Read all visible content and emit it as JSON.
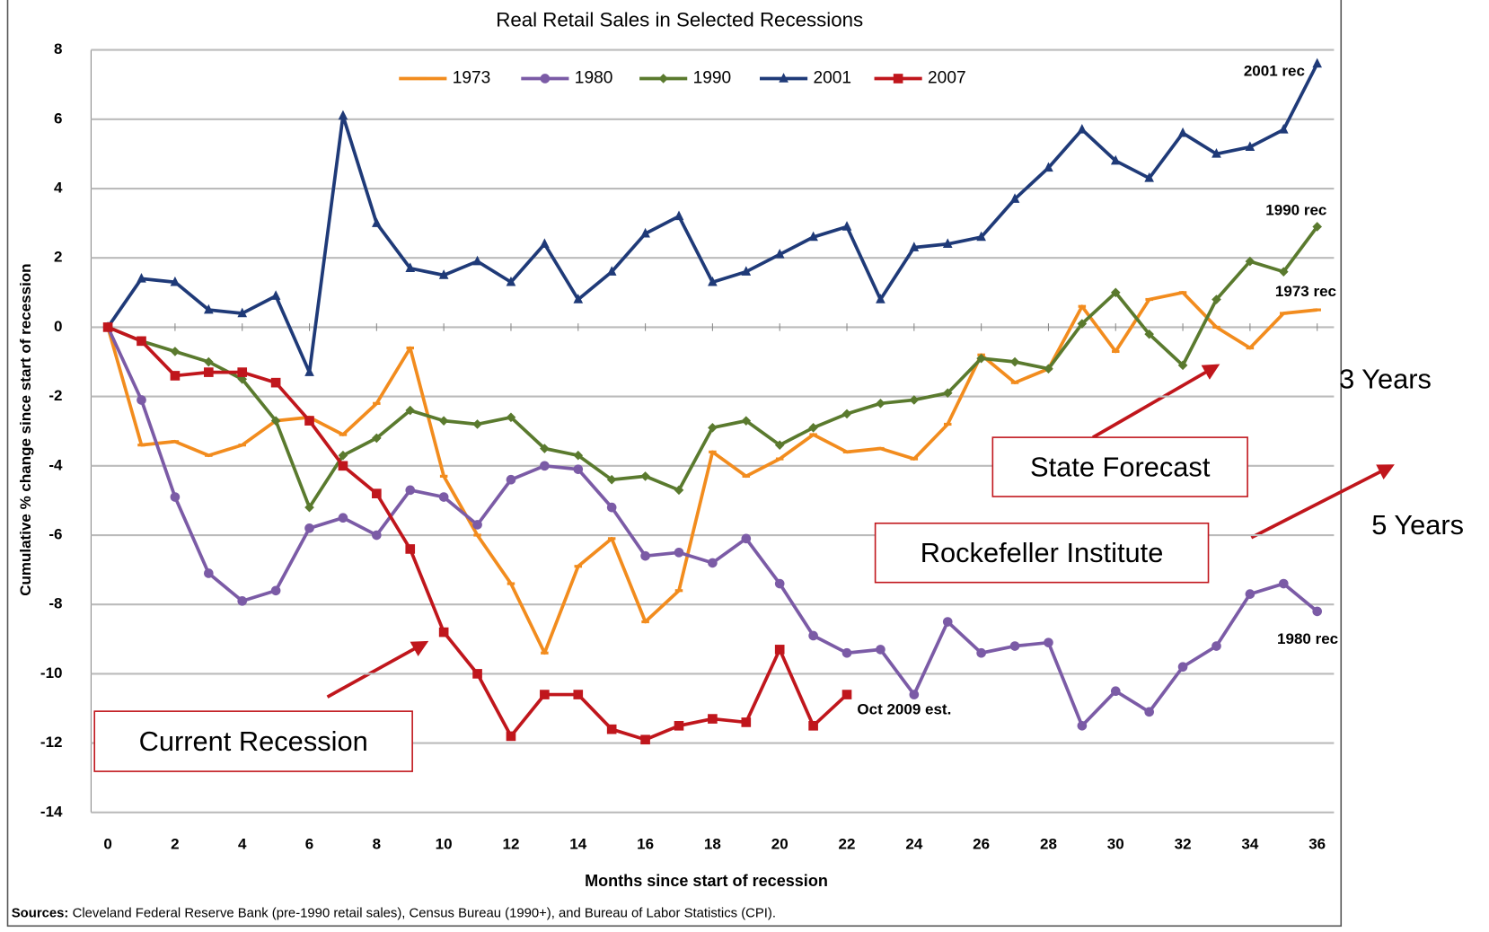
{
  "chart_data": {
    "type": "line",
    "title": "Real Retail Sales in Selected Recessions",
    "xlabel": "Months since start of recession",
    "ylabel": "Cumulative % change since start of recession",
    "x": [
      0,
      1,
      2,
      3,
      4,
      5,
      6,
      7,
      8,
      9,
      10,
      11,
      12,
      13,
      14,
      15,
      16,
      17,
      18,
      19,
      20,
      21,
      22,
      23,
      24,
      25,
      26,
      27,
      28,
      29,
      30,
      31,
      32,
      33,
      34,
      35,
      36
    ],
    "xlim": [
      -0.5,
      36.5
    ],
    "xticks": [
      0,
      2,
      4,
      6,
      8,
      10,
      12,
      14,
      16,
      18,
      20,
      22,
      24,
      26,
      28,
      30,
      32,
      34,
      36
    ],
    "ylim": [
      -14,
      8
    ],
    "yticks": [
      -14,
      -12,
      -10,
      -8,
      -6,
      -4,
      -2,
      0,
      2,
      4,
      6,
      8
    ],
    "grid": true,
    "legend": "top",
    "series": [
      {
        "name": "1973",
        "color": "#f28c1e",
        "marker": "dash",
        "values": [
          0,
          -3.4,
          -3.3,
          -3.7,
          -3.4,
          -2.7,
          -2.6,
          -3.1,
          -2.2,
          -0.6,
          -4.3,
          -6.0,
          -7.4,
          -9.4,
          -6.9,
          -6.1,
          -8.5,
          -7.6,
          -3.6,
          -4.3,
          -3.8,
          -3.1,
          -3.6,
          -3.5,
          -3.8,
          -2.8,
          -0.8,
          -1.6,
          -1.2,
          0.6,
          -0.7,
          0.8,
          1.0,
          0.0,
          -0.6,
          0.4,
          0.5
        ]
      },
      {
        "name": "1980",
        "color": "#7b5ba6",
        "marker": "circle",
        "values": [
          0,
          -2.1,
          -4.9,
          -7.1,
          -7.9,
          -7.6,
          -5.8,
          -5.5,
          -6.0,
          -4.7,
          -4.9,
          -5.7,
          -4.4,
          -4.0,
          -4.1,
          -5.2,
          -6.6,
          -6.5,
          -6.8,
          -6.1,
          -7.4,
          -8.9,
          -9.4,
          -9.3,
          -10.6,
          -8.5,
          -9.4,
          -9.2,
          -9.1,
          -11.5,
          -10.5,
          -11.1,
          -9.8,
          -9.2,
          -7.7,
          -7.4,
          -8.2
        ]
      },
      {
        "name": "1990",
        "color": "#5a7a2e",
        "marker": "diamond",
        "values": [
          0,
          -0.4,
          -0.7,
          -1.0,
          -1.5,
          -2.7,
          -5.2,
          -3.7,
          -3.2,
          -2.4,
          -2.7,
          -2.8,
          -2.6,
          -3.5,
          -3.7,
          -4.4,
          -4.3,
          -4.7,
          -2.9,
          -2.7,
          -3.4,
          -2.9,
          -2.5,
          -2.2,
          -2.1,
          -1.9,
          -0.9,
          -1.0,
          -1.2,
          0.1,
          1.0,
          -0.2,
          -1.1,
          0.8,
          1.9,
          1.6,
          2.9
        ]
      },
      {
        "name": "2001",
        "color": "#1f3a78",
        "marker": "triangle",
        "values": [
          0,
          1.4,
          1.3,
          0.5,
          0.4,
          0.9,
          -1.3,
          6.1,
          3.0,
          1.7,
          1.5,
          1.9,
          1.3,
          2.4,
          0.8,
          1.6,
          2.7,
          3.2,
          1.3,
          1.6,
          2.1,
          2.6,
          2.9,
          0.8,
          2.3,
          2.4,
          2.6,
          3.7,
          4.6,
          5.7,
          4.8,
          4.3,
          5.6,
          5.0,
          5.2,
          5.7,
          7.6
        ]
      },
      {
        "name": "2007",
        "color": "#c0161c",
        "marker": "square",
        "values": [
          0,
          -0.4,
          -1.4,
          -1.3,
          -1.3,
          -1.6,
          -2.7,
          -4.0,
          -4.8,
          -6.4,
          -8.8,
          -10.0,
          -11.8,
          -10.6,
          -10.6,
          -11.6,
          -11.9,
          -11.5,
          -11.3,
          -11.4,
          -9.3,
          -11.5,
          -10.6,
          null,
          null,
          null,
          null,
          null,
          null,
          null,
          null,
          null,
          null,
          null,
          null,
          null,
          null
        ]
      }
    ],
    "annotations": [
      "2001 rec",
      "1990 rec",
      "1973 rec",
      "1980 rec",
      "Oct 2009 est."
    ],
    "callouts": [
      "Current Recession",
      "State Forecast",
      "Rockefeller Institute",
      "3 Years",
      "5 Years"
    ],
    "sources_label": "Sources:",
    "sources": "Cleveland Federal Reserve Bank (pre-1990 retail sales), Census Bureau (1990+), and Bureau of Labor Statistics (CPI)."
  }
}
